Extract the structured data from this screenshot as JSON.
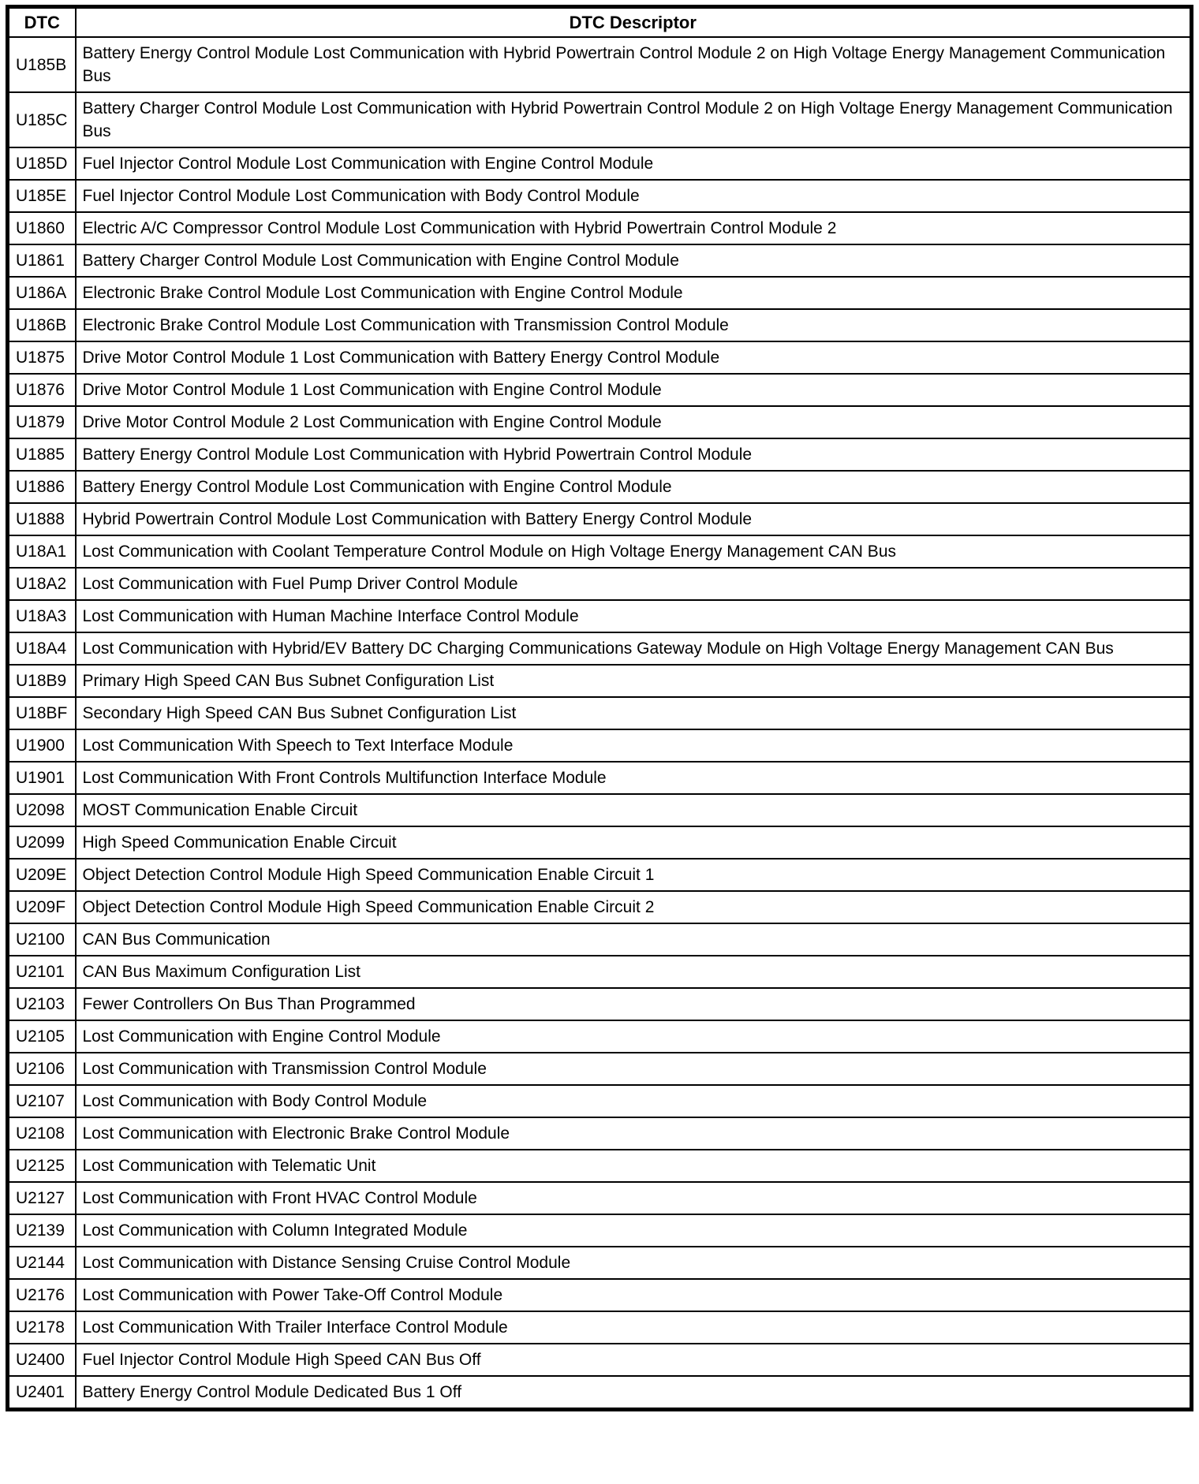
{
  "table": {
    "headers": [
      "DTC",
      "DTC Descriptor"
    ],
    "rows": [
      {
        "code": "U185B",
        "descriptor": "Battery Energy Control Module Lost Communication with Hybrid Powertrain Control Module 2 on High Voltage Energy Management Communication Bus"
      },
      {
        "code": "U185C",
        "descriptor": "Battery Charger Control Module Lost Communication with Hybrid Powertrain Control Module 2 on High Voltage Energy Management Communication Bus"
      },
      {
        "code": "U185D",
        "descriptor": "Fuel Injector Control Module Lost Communication with Engine Control Module"
      },
      {
        "code": "U185E",
        "descriptor": "Fuel Injector Control Module Lost Communication with Body Control Module"
      },
      {
        "code": "U1860",
        "descriptor": "Electric A/C Compressor Control Module Lost Communication with Hybrid Powertrain Control Module 2"
      },
      {
        "code": "U1861",
        "descriptor": "Battery Charger Control Module Lost Communication with Engine Control Module"
      },
      {
        "code": "U186A",
        "descriptor": "Electronic Brake Control Module Lost Communication with Engine Control Module"
      },
      {
        "code": "U186B",
        "descriptor": "Electronic Brake Control Module Lost Communication with Transmission Control Module"
      },
      {
        "code": "U1875",
        "descriptor": "Drive Motor Control Module 1 Lost Communication with Battery Energy Control Module"
      },
      {
        "code": "U1876",
        "descriptor": "Drive Motor Control Module 1 Lost Communication with Engine Control Module"
      },
      {
        "code": "U1879",
        "descriptor": "Drive Motor Control Module 2 Lost Communication with Engine Control Module"
      },
      {
        "code": "U1885",
        "descriptor": "Battery Energy Control Module Lost Communication with Hybrid Powertrain Control Module"
      },
      {
        "code": "U1886",
        "descriptor": "Battery Energy Control Module Lost Communication with Engine Control Module"
      },
      {
        "code": "U1888",
        "descriptor": "Hybrid Powertrain Control Module Lost Communication with Battery Energy Control Module"
      },
      {
        "code": "U18A1",
        "descriptor": "Lost Communication with Coolant Temperature Control Module on High Voltage Energy Management CAN Bus"
      },
      {
        "code": "U18A2",
        "descriptor": "Lost Communication with Fuel Pump Driver Control Module"
      },
      {
        "code": "U18A3",
        "descriptor": "Lost Communication with Human Machine Interface Control Module"
      },
      {
        "code": "U18A4",
        "descriptor": "Lost Communication with Hybrid/EV Battery DC Charging Communications Gateway Module on High Voltage Energy Management CAN Bus"
      },
      {
        "code": "U18B9",
        "descriptor": "Primary High Speed CAN Bus Subnet Configuration List"
      },
      {
        "code": "U18BF",
        "descriptor": "Secondary High Speed CAN Bus Subnet Configuration List"
      },
      {
        "code": "U1900",
        "descriptor": "Lost Communication With Speech to Text Interface Module"
      },
      {
        "code": "U1901",
        "descriptor": "Lost Communication With Front Controls Multifunction Interface Module"
      },
      {
        "code": "U2098",
        "descriptor": "MOST Communication Enable Circuit"
      },
      {
        "code": "U2099",
        "descriptor": "High Speed Communication Enable Circuit"
      },
      {
        "code": "U209E",
        "descriptor": "Object Detection Control Module High Speed Communication Enable Circuit 1"
      },
      {
        "code": "U209F",
        "descriptor": "Object Detection Control Module High Speed Communication Enable Circuit 2"
      },
      {
        "code": "U2100",
        "descriptor": "CAN Bus Communication"
      },
      {
        "code": "U2101",
        "descriptor": "CAN Bus Maximum Configuration List"
      },
      {
        "code": "U2103",
        "descriptor": "Fewer Controllers On Bus Than Programmed"
      },
      {
        "code": "U2105",
        "descriptor": "Lost Communication with Engine Control Module"
      },
      {
        "code": "U2106",
        "descriptor": "Lost Communication with Transmission Control Module"
      },
      {
        "code": "U2107",
        "descriptor": "Lost Communication with Body Control Module"
      },
      {
        "code": "U2108",
        "descriptor": "Lost Communication with Electronic Brake Control Module"
      },
      {
        "code": "U2125",
        "descriptor": "Lost Communication with Telematic Unit"
      },
      {
        "code": "U2127",
        "descriptor": "Lost Communication with Front HVAC Control Module"
      },
      {
        "code": "U2139",
        "descriptor": "Lost Communication with Column Integrated Module"
      },
      {
        "code": "U2144",
        "descriptor": "Lost Communication with Distance Sensing Cruise Control Module"
      },
      {
        "code": "U2176",
        "descriptor": "Lost Communication with Power Take-Off Control Module"
      },
      {
        "code": "U2178",
        "descriptor": "Lost Communication With Trailer Interface Control Module"
      },
      {
        "code": "U2400",
        "descriptor": "Fuel Injector Control Module High Speed CAN Bus Off"
      },
      {
        "code": "U2401",
        "descriptor": "Battery Energy Control Module Dedicated Bus 1 Off"
      }
    ]
  }
}
